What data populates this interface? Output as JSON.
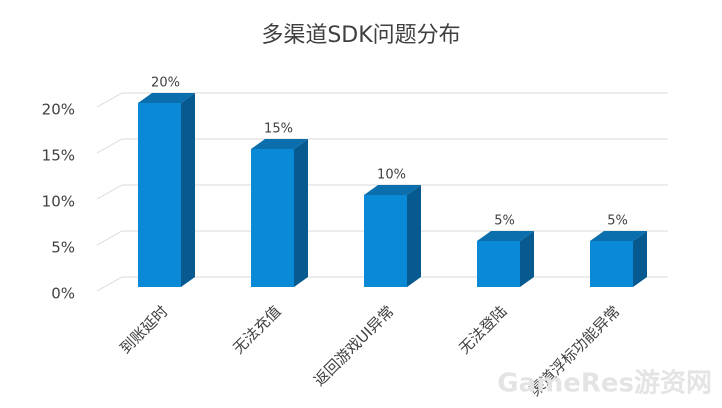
{
  "chart_data": {
    "type": "bar",
    "title": "多渠道SDK问题分布",
    "categories": [
      "到账延时",
      "无法充值",
      "返回游戏UI异常",
      "无法登陆",
      "渠道浮标功能异常"
    ],
    "values": [
      20,
      15,
      10,
      5,
      5
    ],
    "value_labels": [
      "20%",
      "15%",
      "10%",
      "5%",
      "5%"
    ],
    "color": "#0a8ad6",
    "ylim": [
      0,
      20
    ],
    "yticks": [
      {
        "value": 0,
        "label": "0%"
      },
      {
        "value": 5,
        "label": "5%"
      },
      {
        "value": 10,
        "label": "10%"
      },
      {
        "value": 15,
        "label": "15%"
      },
      {
        "value": 20,
        "label": "20%"
      }
    ],
    "grid": true,
    "watermark": "GameRes游资网"
  }
}
